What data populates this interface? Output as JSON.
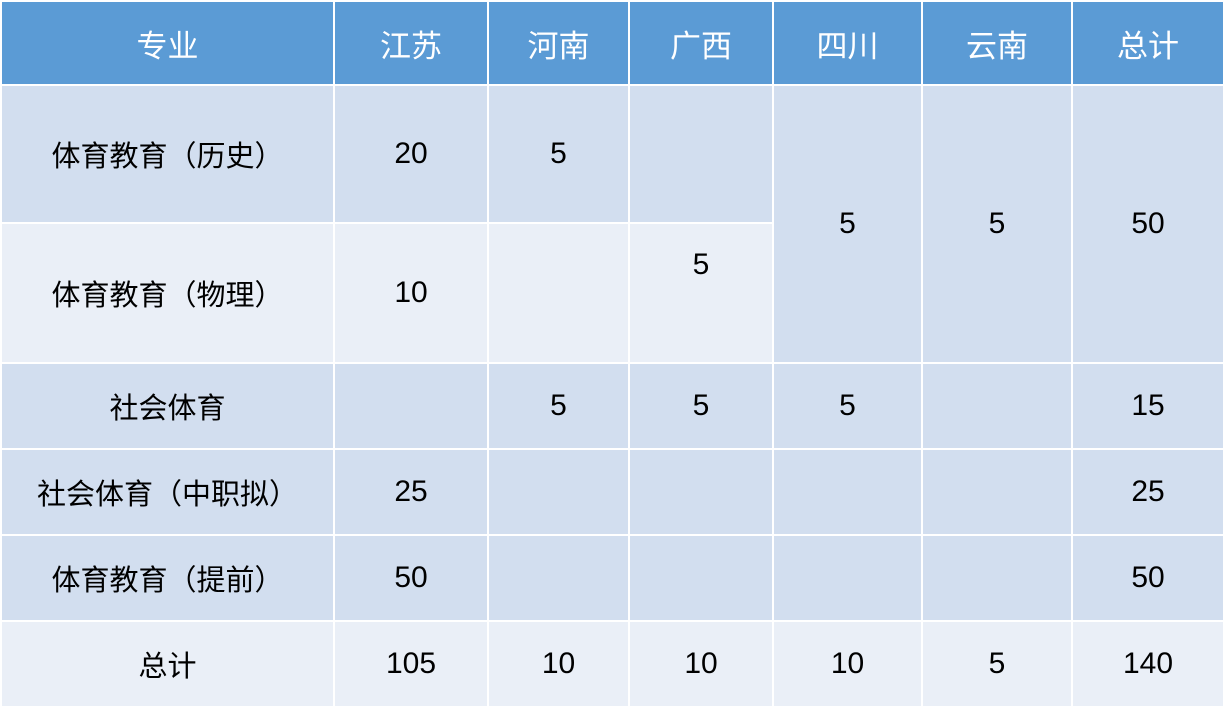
{
  "table": {
    "headers": [
      "专业",
      "江苏",
      "河南",
      "广西",
      "四川",
      "云南",
      "总计"
    ],
    "rows": [
      {
        "major": "体育教育（历史）",
        "jiangsu": "20",
        "henan": "5",
        "guangxi": ""
      },
      {
        "major": "体育教育（物理）",
        "jiangsu": "10",
        "henan": "",
        "guangxi": "5"
      },
      {
        "major": "社会体育",
        "jiangsu": "",
        "henan": "5",
        "guangxi": "5",
        "sichuan": "5",
        "yunnan": "",
        "total": "15"
      },
      {
        "major": "社会体育（中职拟）",
        "jiangsu": "25",
        "henan": "",
        "guangxi": "",
        "sichuan": "",
        "yunnan": "",
        "total": "25"
      },
      {
        "major": "体育教育（提前）",
        "jiangsu": "50",
        "henan": "",
        "guangxi": "",
        "sichuan": "",
        "yunnan": "",
        "total": "50"
      },
      {
        "major": "总计",
        "jiangsu": "105",
        "henan": "10",
        "guangxi": "10",
        "sichuan": "10",
        "yunnan": "5",
        "total": "140"
      }
    ],
    "merged_rows_1_2": {
      "sichuan": "5",
      "yunnan": "5",
      "total": "50"
    },
    "colors": {
      "header": "#5B9BD5",
      "row_dark": "#D2DEEF",
      "row_light": "#EAEFF7"
    }
  }
}
